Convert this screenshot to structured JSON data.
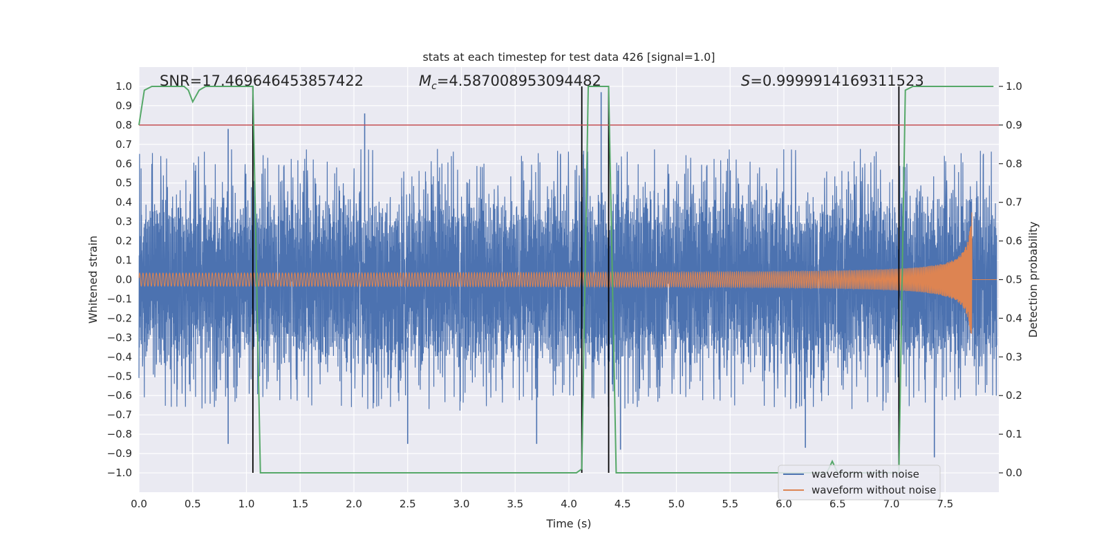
{
  "chart_data": {
    "type": "line",
    "title": "stats at each timestep for test data 426 [signal=1.0]",
    "xlabel": "Time (s)",
    "ylabel": "Whitened strain",
    "y2label": "Detection probability",
    "xlim": [
      0.0,
      8.0
    ],
    "ylim": [
      -1.1,
      1.1
    ],
    "y2lim": [
      -0.05,
      1.05
    ],
    "xticks": [
      "0.0",
      "0.5",
      "1.0",
      "1.5",
      "2.0",
      "2.5",
      "3.0",
      "3.5",
      "4.0",
      "4.5",
      "5.0",
      "5.5",
      "6.0",
      "6.5",
      "7.0",
      "7.5"
    ],
    "xtick_values": [
      0.0,
      0.5,
      1.0,
      1.5,
      2.0,
      2.5,
      3.0,
      3.5,
      4.0,
      4.5,
      5.0,
      5.5,
      6.0,
      6.5,
      7.0,
      7.5
    ],
    "yticks": [
      "1.0",
      "0.9",
      "0.8",
      "0.7",
      "0.6",
      "0.5",
      "0.4",
      "0.3",
      "0.2",
      "0.1",
      "0.0",
      "−0.1",
      "−0.2",
      "−0.3",
      "−0.4",
      "−0.5",
      "−0.6",
      "−0.7",
      "−0.8",
      "−0.9",
      "−1.0"
    ],
    "ytick_values": [
      1.0,
      0.9,
      0.8,
      0.7,
      0.6,
      0.5,
      0.4,
      0.3,
      0.2,
      0.1,
      0.0,
      -0.1,
      -0.2,
      -0.3,
      -0.4,
      -0.5,
      -0.6,
      -0.7,
      -0.8,
      -0.9,
      -1.0
    ],
    "y2ticks": [
      "1.0",
      "0.9",
      "0.8",
      "0.7",
      "0.6",
      "0.5",
      "0.4",
      "0.3",
      "0.2",
      "0.1",
      "0.0"
    ],
    "y2tick_values": [
      1.0,
      0.9,
      0.8,
      0.7,
      0.6,
      0.5,
      0.4,
      0.3,
      0.2,
      0.1,
      0.0
    ],
    "annotations": {
      "snr": "SNR=17.469646453857422",
      "mc_symbol": "M",
      "mc_sub": "c",
      "mc_value": "=4.587008953094482",
      "s_symbol": "S",
      "s_value": "=0.9999914169311523"
    },
    "threshold": {
      "value": 0.9,
      "axis": "y2",
      "color": "#c44e52"
    },
    "vertical_lines": [
      1.06,
      4.12,
      4.37,
      7.07
    ],
    "series": [
      {
        "name": "waveform with noise",
        "color": "#4c72b0",
        "axis": "y1",
        "description_noise_amplitude": 0.35
      },
      {
        "name": "waveform without noise",
        "color": "#dd8452",
        "axis": "y1",
        "chirp_start_amplitude": 0.03,
        "chirp_peak_amplitude": 0.37,
        "merger_time": 7.75
      },
      {
        "name": "detection probability",
        "color": "#55a868",
        "axis": "y2",
        "x": [
          0.0,
          0.05,
          0.12,
          0.2,
          0.3,
          0.42,
          0.46,
          0.5,
          0.56,
          0.62,
          0.75,
          0.9,
          1.0,
          1.06,
          1.13,
          1.5,
          2.0,
          2.5,
          3.0,
          3.5,
          4.0,
          4.07,
          4.12,
          4.18,
          4.25,
          4.3,
          4.37,
          4.44,
          4.5,
          5.0,
          5.5,
          6.0,
          6.4,
          6.45,
          6.5,
          7.06,
          7.07,
          7.13,
          7.2,
          7.5,
          7.95
        ],
        "values": [
          0.9,
          0.99,
          1.0,
          1.0,
          1.0,
          1.0,
          0.99,
          0.96,
          0.99,
          1.0,
          1.0,
          1.0,
          1.0,
          1.0,
          0.0,
          0.0,
          0.0,
          0.0,
          0.0,
          0.0,
          0.0,
          0.0,
          0.01,
          1.0,
          1.0,
          1.0,
          1.0,
          0.0,
          0.0,
          0.0,
          0.0,
          0.0,
          0.0,
          0.03,
          0.0,
          0.0,
          0.0,
          0.99,
          1.0,
          1.0,
          1.0
        ]
      }
    ],
    "outliers_up": [
      [
        0.83,
        0.78
      ],
      [
        2.1,
        0.86
      ],
      [
        4.12,
        0.82
      ],
      [
        4.3,
        0.97
      ]
    ],
    "outliers_down": [
      [
        0.83,
        -0.85
      ],
      [
        2.5,
        -0.85
      ],
      [
        3.7,
        -0.85
      ],
      [
        4.48,
        -0.88
      ],
      [
        6.2,
        -0.87
      ],
      [
        7.4,
        -0.92
      ]
    ],
    "legend": {
      "position": "lower-right",
      "entries": [
        "waveform with noise",
        "waveform without noise"
      ]
    },
    "grid": true
  }
}
